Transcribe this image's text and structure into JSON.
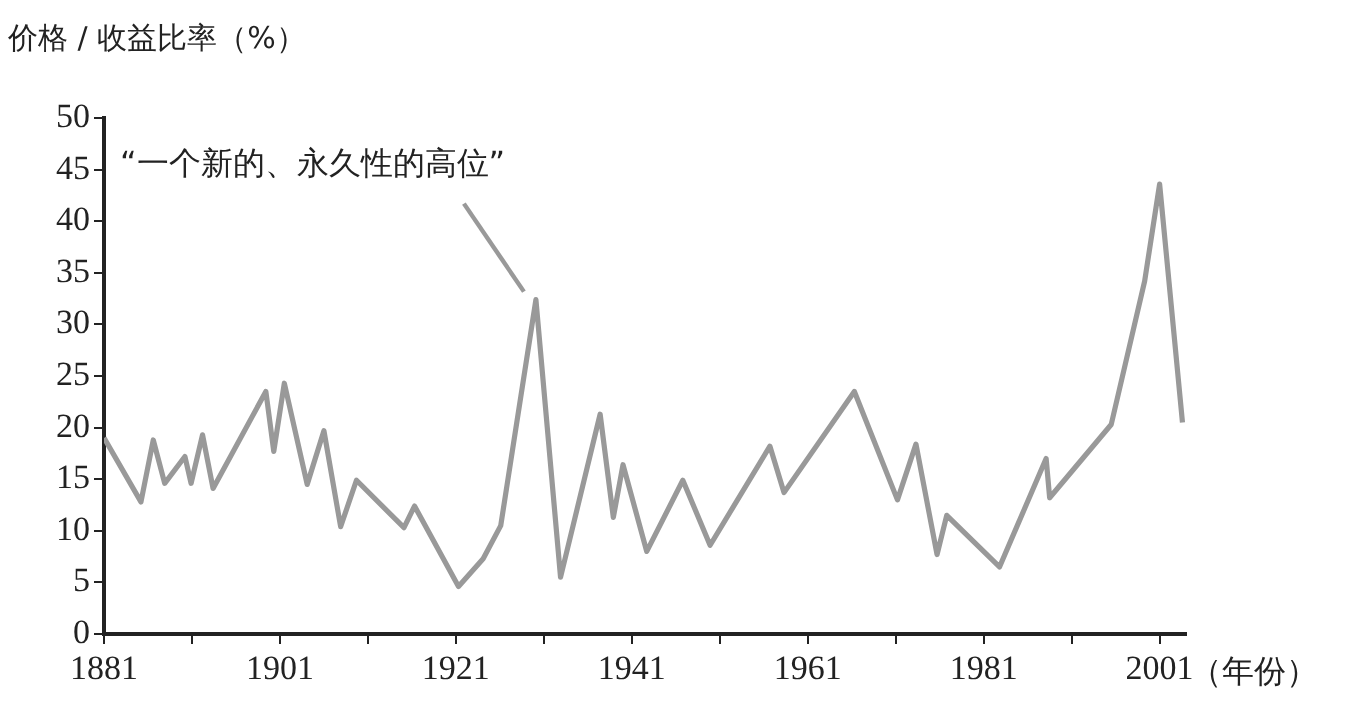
{
  "chart_data": {
    "type": "line",
    "ylabel": "价格 / 收益比率（%）",
    "xlabel": "（年份）",
    "x": [
      1881,
      1885.2,
      1886.6,
      1887.9,
      1890.2,
      1890.9,
      1892.2,
      1893.4,
      1899.4,
      1900.3,
      1901.5,
      1904.1,
      1906,
      1907.9,
      1909.7,
      1915.1,
      1916.3,
      1921.3,
      1924.1,
      1926.1,
      1930.1,
      1932.9,
      1937.4,
      1938.9,
      1940,
      1942.7,
      1946.8,
      1949.9,
      1956.7,
      1958.3,
      1966.3,
      1971.2,
      1973.3,
      1975.7,
      1976.8,
      1982.8,
      1988.1,
      1988.5,
      1995.5,
      1999.3,
      2001,
      2003.6
    ],
    "series": [
      {
        "color": "#999999",
        "values": [
          19,
          12.8,
          18.8,
          14.6,
          17.2,
          14.6,
          19.3,
          14.1,
          23.5,
          17.7,
          24.3,
          14.5,
          19.7,
          10.4,
          14.9,
          10.3,
          12.4,
          4.6,
          7.3,
          10.5,
          32.4,
          5.5,
          21.3,
          11.3,
          16.4,
          8,
          14.9,
          8.6,
          18.2,
          13.7,
          23.5,
          13,
          18.4,
          7.7,
          11.5,
          6.5,
          17,
          13.2,
          20.3,
          34.2,
          43.6,
          20.5
        ]
      }
    ],
    "xlim": [
      1881,
      2004
    ],
    "xticks": [
      1881,
      {
        "value": 1891,
        "label": null
      },
      1901,
      {
        "value": 1911,
        "label": null
      },
      1921,
      {
        "value": 1931,
        "label": null
      },
      1941,
      {
        "value": 1951,
        "label": null
      },
      1961,
      {
        "value": 1971,
        "label": null
      },
      1981,
      {
        "value": 1991,
        "label": null
      },
      2001
    ],
    "ylim": [
      0,
      50
    ],
    "yticks": [
      0,
      5,
      10,
      15,
      20,
      25,
      30,
      35,
      40,
      45,
      50
    ],
    "grid": false,
    "legend": false,
    "marker": "none",
    "line_style": "solid",
    "annotations": [
      {
        "text": "“一个新的、永久性的高位”",
        "x": 1930.1,
        "y": 32.4
      }
    ]
  }
}
